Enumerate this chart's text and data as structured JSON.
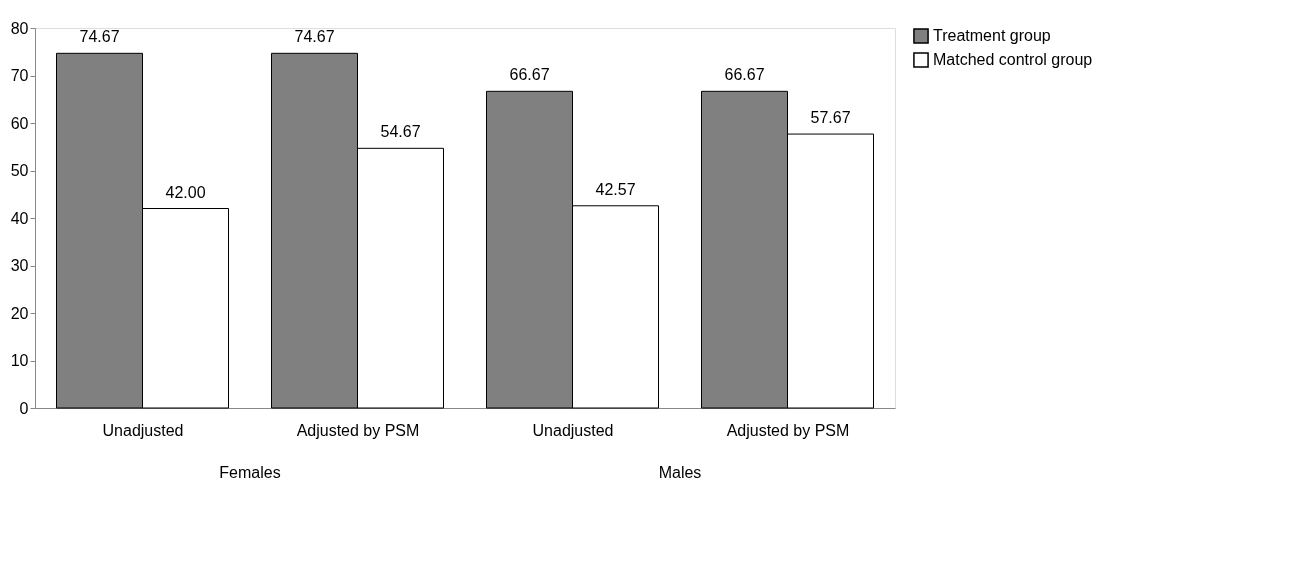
{
  "chart_data": {
    "type": "bar",
    "categories": [
      "Unadjusted",
      "Adjusted by PSM",
      "Unadjusted",
      "Adjusted by PSM"
    ],
    "series": [
      {
        "name": "Treatment group",
        "color": "#808080",
        "values": [
          74.67,
          74.67,
          66.67,
          66.67
        ],
        "value_labels": [
          "74.67",
          "74.67",
          "66.67",
          "66.67"
        ]
      },
      {
        "name": "Matched control group",
        "color": "#ffffff",
        "values": [
          42.0,
          54.67,
          42.57,
          57.67
        ],
        "value_labels": [
          "42.00",
          "54.67",
          "42.57",
          "57.67"
        ]
      }
    ],
    "annotations": [
      "Females",
      "Males"
    ],
    "ylim": [
      0,
      80
    ],
    "yticks": [
      0,
      10,
      20,
      30,
      40,
      50,
      60,
      70,
      80
    ],
    "grid": false,
    "legend": "right"
  }
}
